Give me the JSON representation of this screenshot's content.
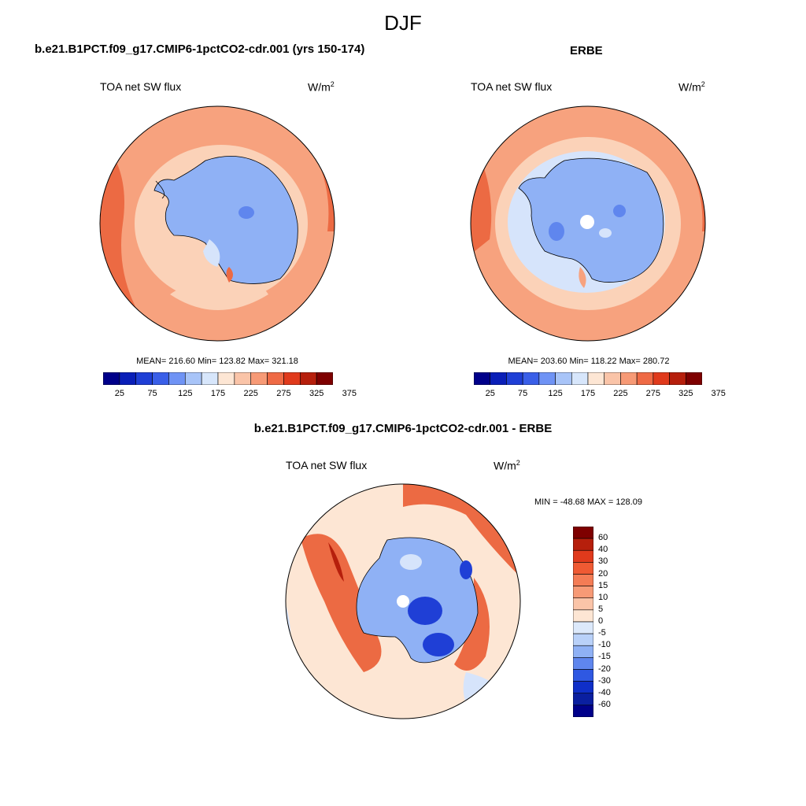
{
  "page": {
    "title": "DJF"
  },
  "panels": [
    {
      "id": "model",
      "title": "b.e21.B1PCT.f09_g17.CMIP6-1pctCO2-cdr.001 (yrs 150-174)",
      "variable": "TOA net SW flux",
      "units_base": "W/m",
      "units_exp": "2",
      "stats": "MEAN= 216.60  Min= 123.82  Max= 321.18"
    },
    {
      "id": "obs",
      "title": "ERBE",
      "variable": "TOA net SW flux",
      "units_base": "W/m",
      "units_exp": "2",
      "stats": "MEAN= 203.60  Min= 118.22  Max= 280.72"
    },
    {
      "id": "diff",
      "title": "b.e21.B1PCT.f09_g17.CMIP6-1pctCO2-cdr.001 - ERBE",
      "variable": "TOA net SW flux",
      "units_base": "W/m",
      "units_exp": "2",
      "stats": "MIN = -48.68 MAX = 128.09"
    }
  ],
  "colorbar_abs": {
    "labels": [
      "25",
      "75",
      "125",
      "175",
      "225",
      "275",
      "325",
      "375"
    ],
    "colors": [
      "#00008a",
      "#0a1fb8",
      "#1f3fd6",
      "#3a5fe8",
      "#6f93f5",
      "#a8c4f8",
      "#d7e6fb",
      "#fde6d4",
      "#fac4a8",
      "#f79a76",
      "#ef6a45",
      "#e03a1c",
      "#b61f0c",
      "#7e0000"
    ]
  },
  "colorbar_diff": {
    "labels": [
      "60",
      "40",
      "30",
      "20",
      "15",
      "10",
      "5",
      "0",
      "-5",
      "-10",
      "-15",
      "-20",
      "-30",
      "-40",
      "-60"
    ],
    "colors": [
      "#7e0000",
      "#b61f0c",
      "#e03a1c",
      "#ef5a33",
      "#f47c55",
      "#f79a76",
      "#fac4a8",
      "#fde6d4",
      "#dce9fb",
      "#b9d1f9",
      "#8fb1f5",
      "#5f86ee",
      "#2f58e2",
      "#0f2fc8",
      "#0a1fa0",
      "#00008a"
    ]
  },
  "map_colors": {
    "warm_light": "#fbd2b8",
    "warm_mid": "#f7a27e",
    "warm_strong": "#ec6a43",
    "cool_light": "#d6e4fb",
    "cool_mid": "#8fb1f5",
    "cool_strong": "#5f86ee",
    "cool_dark": "#1f3fd6",
    "red_dark": "#b61f0c"
  }
}
